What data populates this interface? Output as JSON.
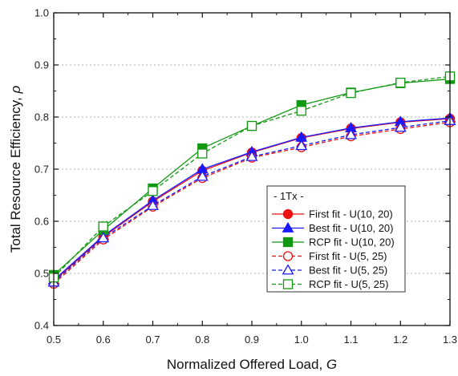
{
  "chart_data": {
    "type": "line",
    "xlabel": "Normalized Offered Load, ",
    "xlabel_var": "G",
    "ylabel": "Total Resource Efficiency, ",
    "ylabel_var": "ρ",
    "xlim": [
      0.5,
      1.3
    ],
    "ylim": [
      0.4,
      1.0
    ],
    "x_ticks": [
      "0.5",
      "0.6",
      "0.7",
      "0.8",
      "0.9",
      "1.0",
      "1.1",
      "1.2",
      "1.3"
    ],
    "y_ticks": [
      "0.4",
      "0.5",
      "0.6",
      "0.7",
      "0.8",
      "0.9",
      "1.0"
    ],
    "grid": "horizontal dotted",
    "legend": {
      "title": "- 1Tx -",
      "placement": "bottom-right"
    },
    "x": [
      0.5,
      0.6,
      0.7,
      0.8,
      0.9,
      1.0,
      1.1,
      1.2,
      1.3
    ],
    "series": [
      {
        "name": "First fit - U(10, 20)",
        "color": "#ee1111",
        "marker": "circle",
        "filled": true,
        "dashed": false,
        "values": [
          0.485,
          0.57,
          0.638,
          0.697,
          0.732,
          0.76,
          0.778,
          0.79,
          0.797
        ]
      },
      {
        "name": "Best fit - U(10, 20)",
        "color": "#1a1aff",
        "marker": "triangle",
        "filled": true,
        "dashed": false,
        "values": [
          0.487,
          0.572,
          0.64,
          0.7,
          0.733,
          0.761,
          0.779,
          0.791,
          0.798
        ]
      },
      {
        "name": "RCP fit - U(10, 20)",
        "color": "#119911",
        "marker": "square",
        "filled": true,
        "dashed": false,
        "values": [
          0.497,
          0.583,
          0.663,
          0.74,
          0.783,
          0.823,
          0.847,
          0.865,
          0.873
        ]
      },
      {
        "name": "First fit - U(5, 25)",
        "color": "#ee1111",
        "marker": "circle",
        "filled": false,
        "dashed": true,
        "values": [
          0.48,
          0.565,
          0.628,
          0.683,
          0.722,
          0.742,
          0.763,
          0.777,
          0.79
        ]
      },
      {
        "name": "Best fit - U(5, 25)",
        "color": "#1a1aff",
        "marker": "triangle",
        "filled": false,
        "dashed": true,
        "values": [
          0.483,
          0.568,
          0.63,
          0.686,
          0.724,
          0.745,
          0.766,
          0.78,
          0.793
        ]
      },
      {
        "name": "RCP fit - U(5, 25)",
        "color": "#119911",
        "marker": "square",
        "filled": false,
        "dashed": true,
        "values": [
          0.492,
          0.59,
          0.658,
          0.73,
          0.783,
          0.812,
          0.846,
          0.866,
          0.878
        ]
      }
    ]
  }
}
